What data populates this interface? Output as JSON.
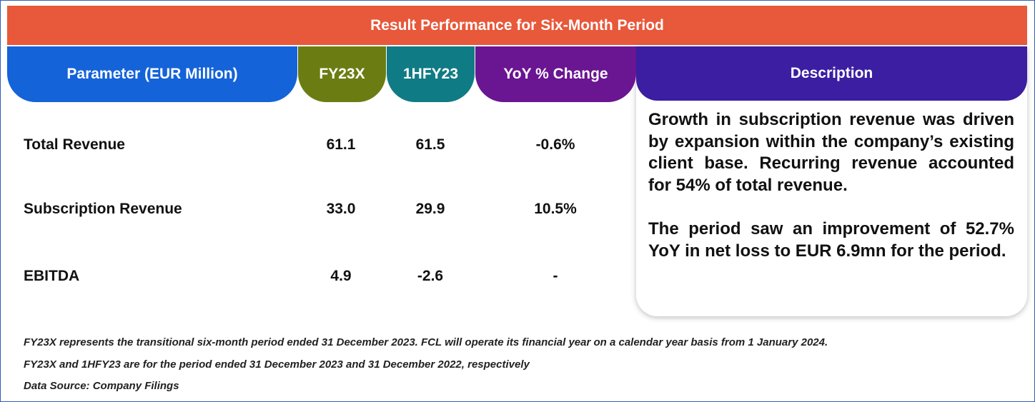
{
  "header": {
    "title": "Result Performance for Six-Month Period"
  },
  "table": {
    "columns": [
      "Parameter (EUR Million)",
      "FY23X",
      "1HFY23",
      "YoY % Change",
      "Description"
    ],
    "rows": [
      [
        "Total Revenue",
        "61.1",
        "61.5",
        "-0.6%"
      ],
      [
        "Subscription Revenue",
        "33.0",
        "29.9",
        "10.5%"
      ],
      [
        "EBITDA",
        "4.9",
        "-2.6",
        "-"
      ]
    ],
    "description": [
      "Growth in subscription revenue was driven by expansion within the company’s existing client base. Recurring revenue accounted for 54% of total revenue.",
      "The period saw an improvement of 52.7% YoY in net loss to EUR 6.9mn for the period."
    ]
  },
  "footnotes": [
    "FY23X represents the transitional six-month period ended 31 December 2023. FCL will operate its financial year on a calendar year basis from 1 January 2024.",
    "FY23X and 1HFY23 are for the period ended 31 December 2023 and  31 December 2022, respectively",
    "Data Source: Company Filings"
  ]
}
